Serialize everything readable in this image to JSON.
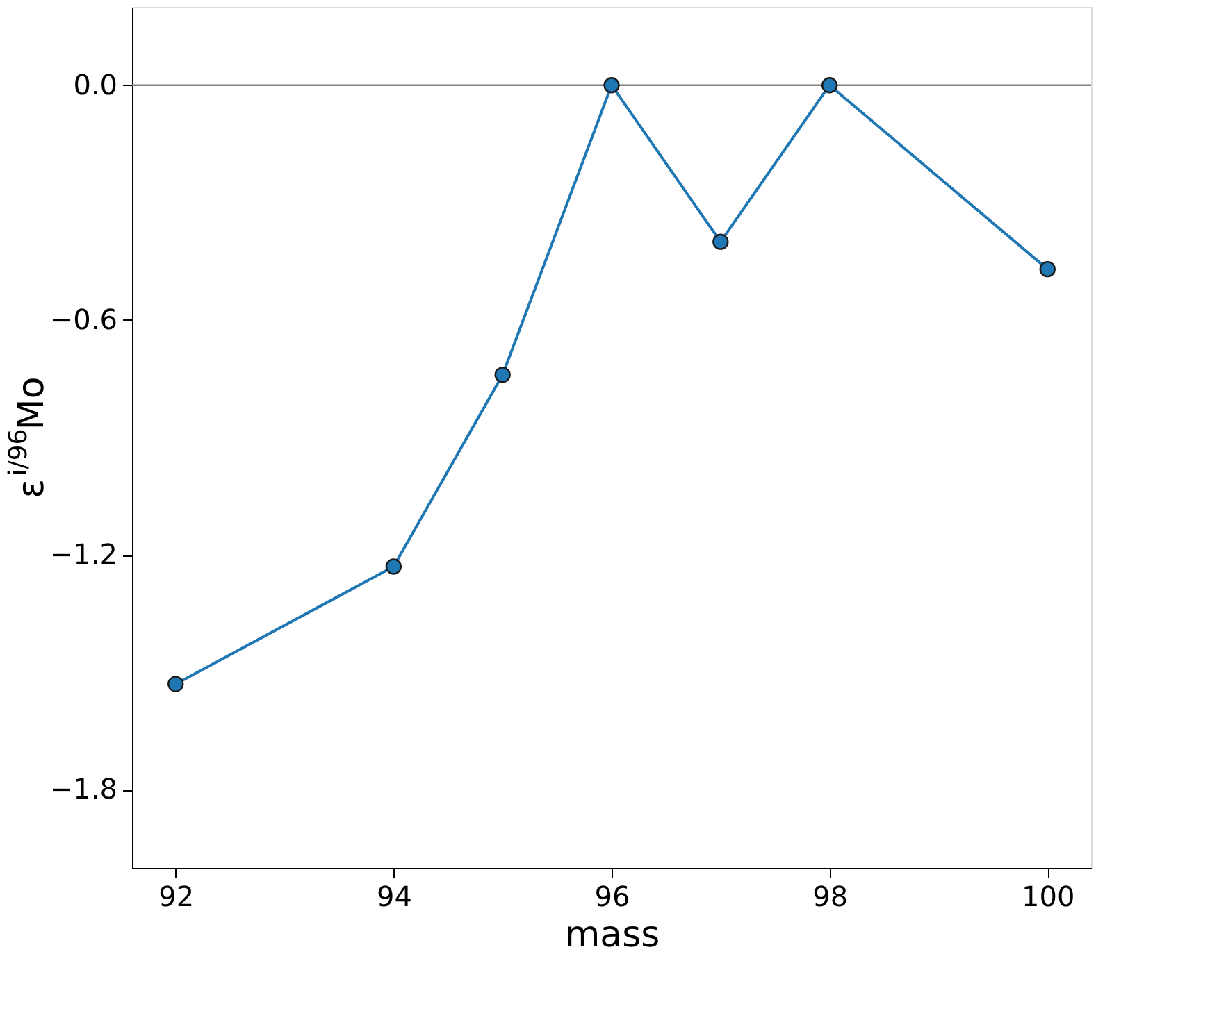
{
  "chart_data": {
    "type": "line",
    "xlabel": "mass",
    "ylabel": "ε$^{i/96}$Mo",
    "x": [
      92,
      94,
      95,
      96,
      97,
      98,
      100
    ],
    "series": [
      {
        "color": "#1f77b4",
        "values": [
          -1.53,
          -1.23,
          -0.74,
          0.0,
          -0.4,
          0.0,
          -0.47
        ]
      }
    ],
    "xlim": [
      91.6,
      100.4
    ],
    "xticks": [
      92,
      94,
      96,
      98,
      100
    ],
    "ylim": [
      -2.0,
      0.2
    ],
    "yticks": [
      {
        "value": 0.0,
        "label": "0.0"
      },
      {
        "value": -0.6,
        "label": "−0.6"
      },
      {
        "value": -1.2,
        "label": "−1.2"
      },
      {
        "value": -1.8,
        "label": "−1.8"
      }
    ],
    "ref_lines": [
      {
        "axis": "y",
        "value": 0.0,
        "color": "#808080"
      }
    ],
    "grid": false,
    "marker": "circle",
    "line_style": "solid"
  }
}
